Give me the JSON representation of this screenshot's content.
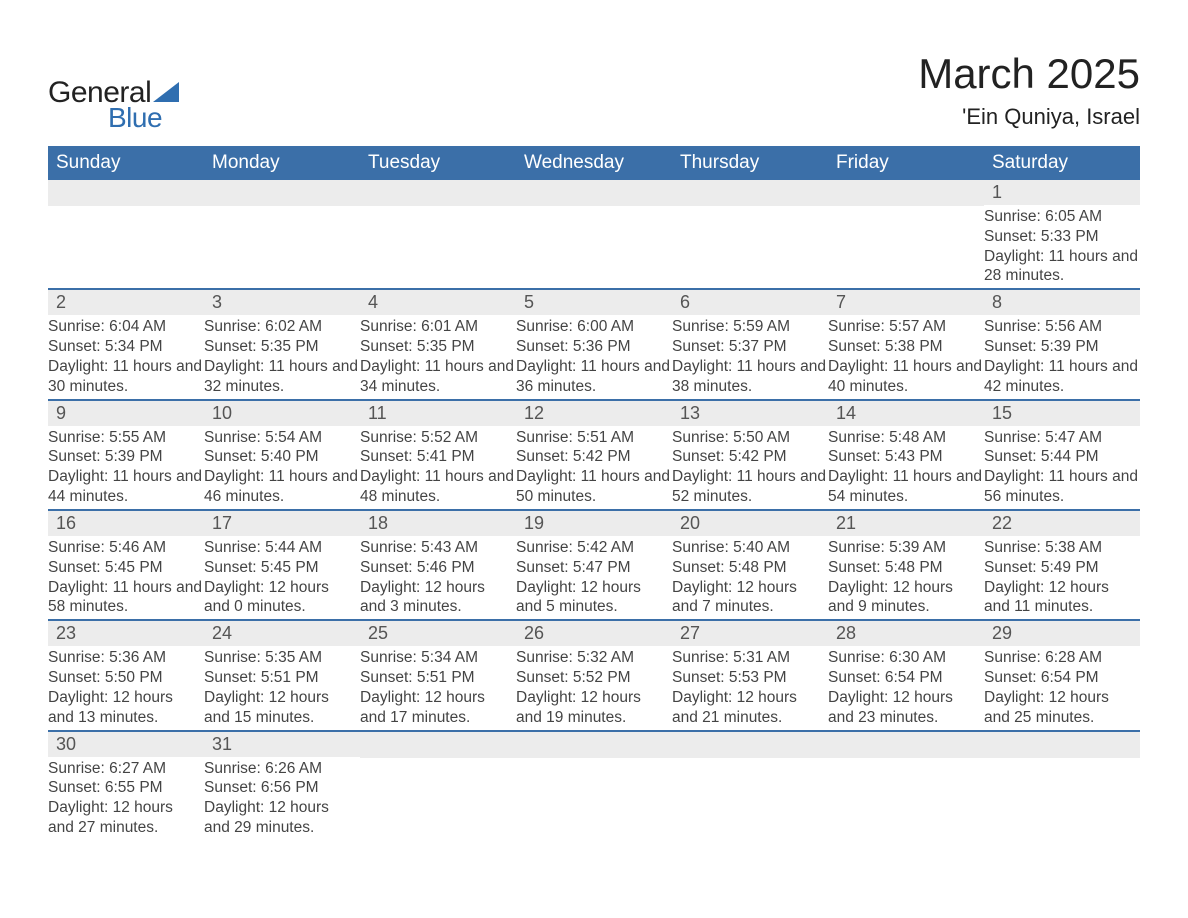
{
  "brand": {
    "word1": "General",
    "word2": "Blue",
    "accent_color": "#2f6eb0",
    "text_color": "#222222"
  },
  "title": {
    "month": "March 2025",
    "location": "'Ein Quniya, Israel"
  },
  "calendar": {
    "header_bg": "#3b6fa8",
    "header_text": "#ffffff",
    "row_border": "#3b6fa8",
    "daynum_bg": "#ececec",
    "day_text": "#444444",
    "day_labels": [
      "Sunday",
      "Monday",
      "Tuesday",
      "Wednesday",
      "Thursday",
      "Friday",
      "Saturday"
    ],
    "weeks": [
      [
        {
          "n": "",
          "lines": []
        },
        {
          "n": "",
          "lines": []
        },
        {
          "n": "",
          "lines": []
        },
        {
          "n": "",
          "lines": []
        },
        {
          "n": "",
          "lines": []
        },
        {
          "n": "",
          "lines": []
        },
        {
          "n": "1",
          "lines": [
            "Sunrise: 6:05 AM",
            "Sunset: 5:33 PM",
            "Daylight: 11 hours and 28 minutes."
          ]
        }
      ],
      [
        {
          "n": "2",
          "lines": [
            "Sunrise: 6:04 AM",
            "Sunset: 5:34 PM",
            "Daylight: 11 hours and 30 minutes."
          ]
        },
        {
          "n": "3",
          "lines": [
            "Sunrise: 6:02 AM",
            "Sunset: 5:35 PM",
            "Daylight: 11 hours and 32 minutes."
          ]
        },
        {
          "n": "4",
          "lines": [
            "Sunrise: 6:01 AM",
            "Sunset: 5:35 PM",
            "Daylight: 11 hours and 34 minutes."
          ]
        },
        {
          "n": "5",
          "lines": [
            "Sunrise: 6:00 AM",
            "Sunset: 5:36 PM",
            "Daylight: 11 hours and 36 minutes."
          ]
        },
        {
          "n": "6",
          "lines": [
            "Sunrise: 5:59 AM",
            "Sunset: 5:37 PM",
            "Daylight: 11 hours and 38 minutes."
          ]
        },
        {
          "n": "7",
          "lines": [
            "Sunrise: 5:57 AM",
            "Sunset: 5:38 PM",
            "Daylight: 11 hours and 40 minutes."
          ]
        },
        {
          "n": "8",
          "lines": [
            "Sunrise: 5:56 AM",
            "Sunset: 5:39 PM",
            "Daylight: 11 hours and 42 minutes."
          ]
        }
      ],
      [
        {
          "n": "9",
          "lines": [
            "Sunrise: 5:55 AM",
            "Sunset: 5:39 PM",
            "Daylight: 11 hours and 44 minutes."
          ]
        },
        {
          "n": "10",
          "lines": [
            "Sunrise: 5:54 AM",
            "Sunset: 5:40 PM",
            "Daylight: 11 hours and 46 minutes."
          ]
        },
        {
          "n": "11",
          "lines": [
            "Sunrise: 5:52 AM",
            "Sunset: 5:41 PM",
            "Daylight: 11 hours and 48 minutes."
          ]
        },
        {
          "n": "12",
          "lines": [
            "Sunrise: 5:51 AM",
            "Sunset: 5:42 PM",
            "Daylight: 11 hours and 50 minutes."
          ]
        },
        {
          "n": "13",
          "lines": [
            "Sunrise: 5:50 AM",
            "Sunset: 5:42 PM",
            "Daylight: 11 hours and 52 minutes."
          ]
        },
        {
          "n": "14",
          "lines": [
            "Sunrise: 5:48 AM",
            "Sunset: 5:43 PM",
            "Daylight: 11 hours and 54 minutes."
          ]
        },
        {
          "n": "15",
          "lines": [
            "Sunrise: 5:47 AM",
            "Sunset: 5:44 PM",
            "Daylight: 11 hours and 56 minutes."
          ]
        }
      ],
      [
        {
          "n": "16",
          "lines": [
            "Sunrise: 5:46 AM",
            "Sunset: 5:45 PM",
            "Daylight: 11 hours and 58 minutes."
          ]
        },
        {
          "n": "17",
          "lines": [
            "Sunrise: 5:44 AM",
            "Sunset: 5:45 PM",
            "Daylight: 12 hours and 0 minutes."
          ]
        },
        {
          "n": "18",
          "lines": [
            "Sunrise: 5:43 AM",
            "Sunset: 5:46 PM",
            "Daylight: 12 hours and 3 minutes."
          ]
        },
        {
          "n": "19",
          "lines": [
            "Sunrise: 5:42 AM",
            "Sunset: 5:47 PM",
            "Daylight: 12 hours and 5 minutes."
          ]
        },
        {
          "n": "20",
          "lines": [
            "Sunrise: 5:40 AM",
            "Sunset: 5:48 PM",
            "Daylight: 12 hours and 7 minutes."
          ]
        },
        {
          "n": "21",
          "lines": [
            "Sunrise: 5:39 AM",
            "Sunset: 5:48 PM",
            "Daylight: 12 hours and 9 minutes."
          ]
        },
        {
          "n": "22",
          "lines": [
            "Sunrise: 5:38 AM",
            "Sunset: 5:49 PM",
            "Daylight: 12 hours and 11 minutes."
          ]
        }
      ],
      [
        {
          "n": "23",
          "lines": [
            "Sunrise: 5:36 AM",
            "Sunset: 5:50 PM",
            "Daylight: 12 hours and 13 minutes."
          ]
        },
        {
          "n": "24",
          "lines": [
            "Sunrise: 5:35 AM",
            "Sunset: 5:51 PM",
            "Daylight: 12 hours and 15 minutes."
          ]
        },
        {
          "n": "25",
          "lines": [
            "Sunrise: 5:34 AM",
            "Sunset: 5:51 PM",
            "Daylight: 12 hours and 17 minutes."
          ]
        },
        {
          "n": "26",
          "lines": [
            "Sunrise: 5:32 AM",
            "Sunset: 5:52 PM",
            "Daylight: 12 hours and 19 minutes."
          ]
        },
        {
          "n": "27",
          "lines": [
            "Sunrise: 5:31 AM",
            "Sunset: 5:53 PM",
            "Daylight: 12 hours and 21 minutes."
          ]
        },
        {
          "n": "28",
          "lines": [
            "Sunrise: 6:30 AM",
            "Sunset: 6:54 PM",
            "Daylight: 12 hours and 23 minutes."
          ]
        },
        {
          "n": "29",
          "lines": [
            "Sunrise: 6:28 AM",
            "Sunset: 6:54 PM",
            "Daylight: 12 hours and 25 minutes."
          ]
        }
      ],
      [
        {
          "n": "30",
          "lines": [
            "Sunrise: 6:27 AM",
            "Sunset: 6:55 PM",
            "Daylight: 12 hours and 27 minutes."
          ]
        },
        {
          "n": "31",
          "lines": [
            "Sunrise: 6:26 AM",
            "Sunset: 6:56 PM",
            "Daylight: 12 hours and 29 minutes."
          ]
        },
        {
          "n": "",
          "lines": []
        },
        {
          "n": "",
          "lines": []
        },
        {
          "n": "",
          "lines": []
        },
        {
          "n": "",
          "lines": []
        },
        {
          "n": "",
          "lines": []
        }
      ]
    ]
  }
}
